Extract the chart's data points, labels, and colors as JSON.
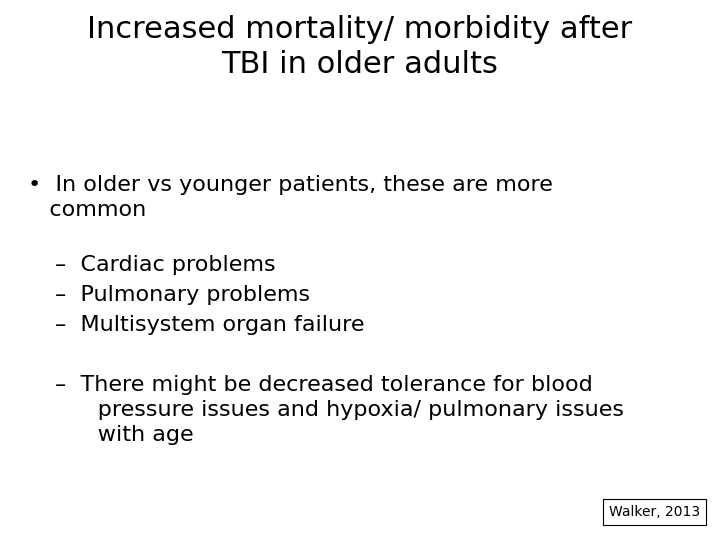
{
  "title_line1": "Increased mortality/ morbidity after",
  "title_line2": "TBI in older adults",
  "bullet1_line1": "•  In older vs younger patients, these are more",
  "bullet1_line2": "   common",
  "sub1": "–  Cardiac problems",
  "sub2": "–  Pulmonary problems",
  "sub3": "–  Multisystem organ failure",
  "sub4_line1": "–  There might be decreased tolerance for blood",
  "sub4_line2": "      pressure issues and hypoxia/ pulmonary issues",
  "sub4_line3": "      with age",
  "citation": "Walker, 2013",
  "bg_color": "#ffffff",
  "text_color": "#000000",
  "title_fontsize": 22,
  "body_fontsize": 16,
  "citation_fontsize": 10
}
